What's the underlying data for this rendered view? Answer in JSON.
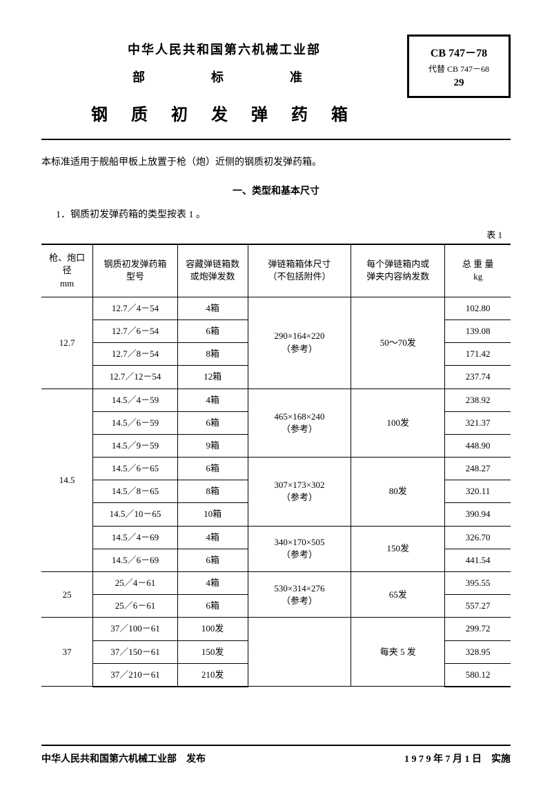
{
  "header": {
    "ministry": "中华人民共和国第六机械工业部",
    "standard_word": "部　　标　　准",
    "title": "钢 质 初 发 弹 药 箱",
    "std_code": "CB 747－78",
    "replaces": "代替 CB 747－68",
    "page_num": "29"
  },
  "intro": "本标准适用于舰船甲板上放置于枪（炮）近侧的钢质初发弹药箱。",
  "section_title": "一、类型和基本尺寸",
  "para_1": "1．钢质初发弹药箱的类型按表 1 。",
  "table_label": "表 1",
  "columns": {
    "caliber": "枪、炮口径\nmm",
    "model": "钢质初发弹药箱\n型号",
    "qty": "容藏弹链箱数\n或炮弹发数",
    "dim": "弹链箱箱体尺寸\n（不包括附件）",
    "cap": "每个弹链箱内或\n弹夹内容纳发数",
    "wt": "总 重 量\nkg"
  },
  "calibers": {
    "c12_7": "12.7",
    "c14_5": "14.5",
    "c25": "25",
    "c37": "37"
  },
  "dims": {
    "d290": "290×164×220\n（参考）",
    "d465": "465×168×240\n（参考）",
    "d307": "307×173×302\n（参考）",
    "d340": "340×170×505\n（参考）",
    "d530": "530×314×276\n（参考）",
    "d37": ""
  },
  "caps": {
    "c50_70": "50～70发",
    "c100": "100发",
    "c80": "80发",
    "c150": "150发",
    "c65": "65发",
    "c5clip": "每夹 5 发"
  },
  "rows": {
    "r1": {
      "model": "12.7／4－54",
      "qty": "4箱",
      "wt": "102.80"
    },
    "r2": {
      "model": "12.7／6－54",
      "qty": "6箱",
      "wt": "139.08"
    },
    "r3": {
      "model": "12.7／8－54",
      "qty": "8箱",
      "wt": "171.42"
    },
    "r4": {
      "model": "12.7／12－54",
      "qty": "12箱",
      "wt": "237.74"
    },
    "r5": {
      "model": "14.5／4－59",
      "qty": "4箱",
      "wt": "238.92"
    },
    "r6": {
      "model": "14.5／6－59",
      "qty": "6箱",
      "wt": "321.37"
    },
    "r7": {
      "model": "14.5／9－59",
      "qty": "9箱",
      "wt": "448.90"
    },
    "r8": {
      "model": "14.5／6－65",
      "qty": "6箱",
      "wt": "248.27"
    },
    "r9": {
      "model": "14.5／8－65",
      "qty": "8箱",
      "wt": "320.11"
    },
    "r10": {
      "model": "14.5／10－65",
      "qty": "10箱",
      "wt": "390.94"
    },
    "r11": {
      "model": "14.5／4－69",
      "qty": "4箱",
      "wt": "326.70"
    },
    "r12": {
      "model": "14.5／6－69",
      "qty": "6箱",
      "wt": "441.54"
    },
    "r13": {
      "model": "25／4－61",
      "qty": "4箱",
      "wt": "395.55"
    },
    "r14": {
      "model": "25／6－61",
      "qty": "6箱",
      "wt": "557.27"
    },
    "r15": {
      "model": "37／100－61",
      "qty": "100发",
      "wt": "299.72"
    },
    "r16": {
      "model": "37／150－61",
      "qty": "150发",
      "wt": "328.95"
    },
    "r17": {
      "model": "37／210－61",
      "qty": "210发",
      "wt": "580.12"
    }
  },
  "footer": {
    "issuer": "中华人民共和国第六机械工业部　发布",
    "date": "1 9 7 9 年 7 月 1 日　实施"
  }
}
